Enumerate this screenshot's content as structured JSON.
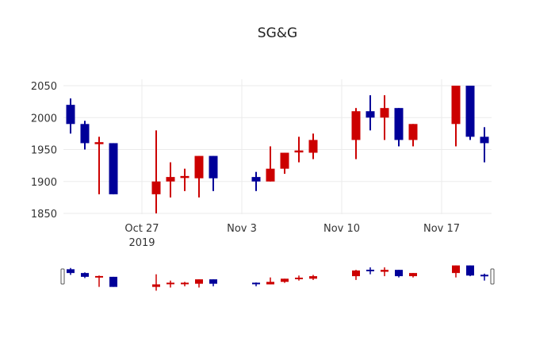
{
  "chart_data": {
    "type": "candlestick",
    "title": "SG&G",
    "xlabel": "",
    "ylabel": "",
    "ylim": [
      1840,
      2060
    ],
    "y_ticks": [
      1850,
      1900,
      1950,
      2000,
      2050
    ],
    "x_ticks": [
      {
        "label": "Oct 27",
        "sub": "2019",
        "date": "2019-10-27"
      },
      {
        "label": "Nov 3",
        "sub": "",
        "date": "2019-11-03"
      },
      {
        "label": "Nov 10",
        "sub": "",
        "date": "2019-11-10"
      },
      {
        "label": "Nov 17",
        "sub": "",
        "date": "2019-11-17"
      }
    ],
    "grid": true,
    "range_slider": true,
    "increasing_color": "#cc0000",
    "decreasing_color": "#000099",
    "series": [
      {
        "date": "2019-10-22",
        "open": 2020,
        "high": 2030,
        "low": 1975,
        "close": 1990
      },
      {
        "date": "2019-10-23",
        "open": 1990,
        "high": 1995,
        "low": 1950,
        "close": 1960
      },
      {
        "date": "2019-10-24",
        "open": 1960,
        "high": 1970,
        "low": 1880,
        "close": 1960
      },
      {
        "date": "2019-10-25",
        "open": 1960,
        "high": 1960,
        "low": 1880,
        "close": 1880
      },
      {
        "date": "2019-10-28",
        "open": 1880,
        "high": 1980,
        "low": 1850,
        "close": 1900
      },
      {
        "date": "2019-10-29",
        "open": 1900,
        "high": 1930,
        "low": 1875,
        "close": 1907
      },
      {
        "date": "2019-10-30",
        "open": 1905,
        "high": 1920,
        "low": 1885,
        "close": 1907
      },
      {
        "date": "2019-10-31",
        "open": 1905,
        "high": 1940,
        "low": 1875,
        "close": 1940
      },
      {
        "date": "2019-11-01",
        "open": 1940,
        "high": 1940,
        "low": 1885,
        "close": 1905
      },
      {
        "date": "2019-11-04",
        "open": 1907,
        "high": 1915,
        "low": 1885,
        "close": 1900
      },
      {
        "date": "2019-11-05",
        "open": 1900,
        "high": 1955,
        "low": 1900,
        "close": 1920
      },
      {
        "date": "2019-11-06",
        "open": 1920,
        "high": 1945,
        "low": 1912,
        "close": 1945
      },
      {
        "date": "2019-11-07",
        "open": 1945,
        "high": 1970,
        "low": 1930,
        "close": 1947
      },
      {
        "date": "2019-11-08",
        "open": 1945,
        "high": 1975,
        "low": 1935,
        "close": 1965
      },
      {
        "date": "2019-11-11",
        "open": 1965,
        "high": 2015,
        "low": 1935,
        "close": 2010
      },
      {
        "date": "2019-11-12",
        "open": 2010,
        "high": 2035,
        "low": 1980,
        "close": 2000
      },
      {
        "date": "2019-11-13",
        "open": 2000,
        "high": 2035,
        "low": 1965,
        "close": 2015
      },
      {
        "date": "2019-11-14",
        "open": 2015,
        "high": 2015,
        "low": 1955,
        "close": 1965
      },
      {
        "date": "2019-11-15",
        "open": 1965,
        "high": 1990,
        "low": 1955,
        "close": 1990
      },
      {
        "date": "2019-11-18",
        "open": 1990,
        "high": 2050,
        "low": 1955,
        "close": 2050
      },
      {
        "date": "2019-11-19",
        "open": 2050,
        "high": 2050,
        "low": 1965,
        "close": 1970
      },
      {
        "date": "2019-11-20",
        "open": 1970,
        "high": 1985,
        "low": 1930,
        "close": 1960
      }
    ]
  }
}
